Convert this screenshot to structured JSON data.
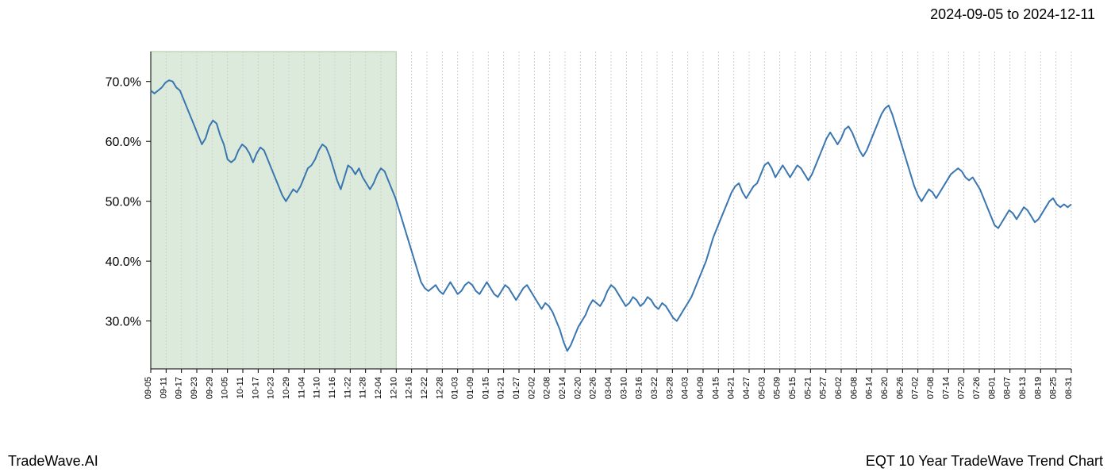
{
  "header": {
    "date_range": "2024-09-05 to 2024-12-11"
  },
  "footer": {
    "left": "TradeWave.AI",
    "right": "EQT 10 Year TradeWave Trend Chart"
  },
  "chart": {
    "type": "line",
    "background_color": "#ffffff",
    "plot_border_color": "#000000",
    "grid_color": "#d0d0d0",
    "grid_dash": "2,2",
    "line_color": "#3a76b0",
    "line_width": 2,
    "highlight_fill": "#dceadb",
    "highlight_border": "#a8c8a0",
    "ylim": [
      22,
      75
    ],
    "yticks": [
      30,
      40,
      50,
      60,
      70
    ],
    "ytick_labels": [
      "30.0%",
      "40.0%",
      "50.0%",
      "60.0%",
      "70.0%"
    ],
    "axis_fontsize": 16,
    "xtick_fontsize": 11,
    "highlight_start_idx": 0,
    "highlight_end_idx": 16,
    "x_labels": [
      "09-05",
      "09-11",
      "09-17",
      "09-23",
      "09-29",
      "10-05",
      "10-11",
      "10-17",
      "10-23",
      "10-29",
      "11-04",
      "11-10",
      "11-16",
      "11-22",
      "11-28",
      "12-04",
      "12-10",
      "12-16",
      "12-22",
      "12-28",
      "01-03",
      "01-09",
      "01-15",
      "01-21",
      "01-27",
      "02-02",
      "02-08",
      "02-14",
      "02-20",
      "02-26",
      "03-04",
      "03-10",
      "03-16",
      "03-22",
      "03-28",
      "04-03",
      "04-09",
      "04-15",
      "04-21",
      "04-27",
      "05-03",
      "05-09",
      "05-15",
      "05-21",
      "05-27",
      "06-02",
      "06-08",
      "06-14",
      "06-20",
      "06-26",
      "07-02",
      "07-08",
      "07-14",
      "07-20",
      "07-26",
      "08-01",
      "08-07",
      "08-13",
      "08-19",
      "08-25",
      "08-31"
    ],
    "values": [
      68.5,
      68.0,
      68.5,
      69.0,
      69.8,
      70.2,
      70.0,
      69.0,
      68.5,
      67.0,
      65.5,
      64.0,
      62.5,
      61.0,
      59.5,
      60.5,
      62.5,
      63.5,
      63.0,
      61.0,
      59.5,
      57.0,
      56.5,
      57.0,
      58.5,
      59.5,
      59.0,
      58.0,
      56.5,
      58.0,
      59.0,
      58.5,
      57.0,
      55.5,
      54.0,
      52.5,
      51.0,
      50.0,
      51.0,
      52.0,
      51.5,
      52.5,
      54.0,
      55.5,
      56.0,
      57.0,
      58.5,
      59.5,
      59.0,
      57.5,
      55.5,
      53.5,
      52.0,
      54.0,
      56.0,
      55.5,
      54.5,
      55.5,
      54.0,
      53.0,
      52.0,
      53.0,
      54.5,
      55.5,
      55.0,
      53.5,
      52.0,
      50.5,
      48.5,
      46.5,
      44.5,
      42.5,
      40.5,
      38.5,
      36.5,
      35.5,
      35.0,
      35.5,
      36.0,
      35.0,
      34.5,
      35.5,
      36.5,
      35.5,
      34.5,
      35.0,
      36.0,
      36.5,
      36.0,
      35.0,
      34.5,
      35.5,
      36.5,
      35.5,
      34.5,
      34.0,
      35.0,
      36.0,
      35.5,
      34.5,
      33.5,
      34.5,
      35.5,
      36.0,
      35.0,
      34.0,
      33.0,
      32.0,
      33.0,
      32.5,
      31.5,
      30.0,
      28.5,
      26.5,
      25.0,
      26.0,
      27.5,
      29.0,
      30.0,
      31.0,
      32.5,
      33.5,
      33.0,
      32.5,
      33.5,
      35.0,
      36.0,
      35.5,
      34.5,
      33.5,
      32.5,
      33.0,
      34.0,
      33.5,
      32.5,
      33.0,
      34.0,
      33.5,
      32.5,
      32.0,
      33.0,
      32.5,
      31.5,
      30.5,
      30.0,
      31.0,
      32.0,
      33.0,
      34.0,
      35.5,
      37.0,
      38.5,
      40.0,
      42.0,
      44.0,
      45.5,
      47.0,
      48.5,
      50.0,
      51.5,
      52.5,
      53.0,
      51.5,
      50.5,
      51.5,
      52.5,
      53.0,
      54.5,
      56.0,
      56.5,
      55.5,
      54.0,
      55.0,
      56.0,
      55.0,
      54.0,
      55.0,
      56.0,
      55.5,
      54.5,
      53.5,
      54.5,
      56.0,
      57.5,
      59.0,
      60.5,
      61.5,
      60.5,
      59.5,
      60.5,
      62.0,
      62.5,
      61.5,
      60.0,
      58.5,
      57.5,
      58.5,
      60.0,
      61.5,
      63.0,
      64.5,
      65.5,
      66.0,
      64.5,
      62.5,
      60.5,
      58.5,
      56.5,
      54.5,
      52.5,
      51.0,
      50.0,
      51.0,
      52.0,
      51.5,
      50.5,
      51.5,
      52.5,
      53.5,
      54.5,
      55.0,
      55.5,
      55.0,
      54.0,
      53.5,
      54.0,
      53.0,
      52.0,
      50.5,
      49.0,
      47.5,
      46.0,
      45.5,
      46.5,
      47.5,
      48.5,
      48.0,
      47.0,
      48.0,
      49.0,
      48.5,
      47.5,
      46.5,
      47.0,
      48.0,
      49.0,
      50.0,
      50.5,
      49.5,
      49.0,
      49.5,
      49.0,
      49.5
    ]
  }
}
